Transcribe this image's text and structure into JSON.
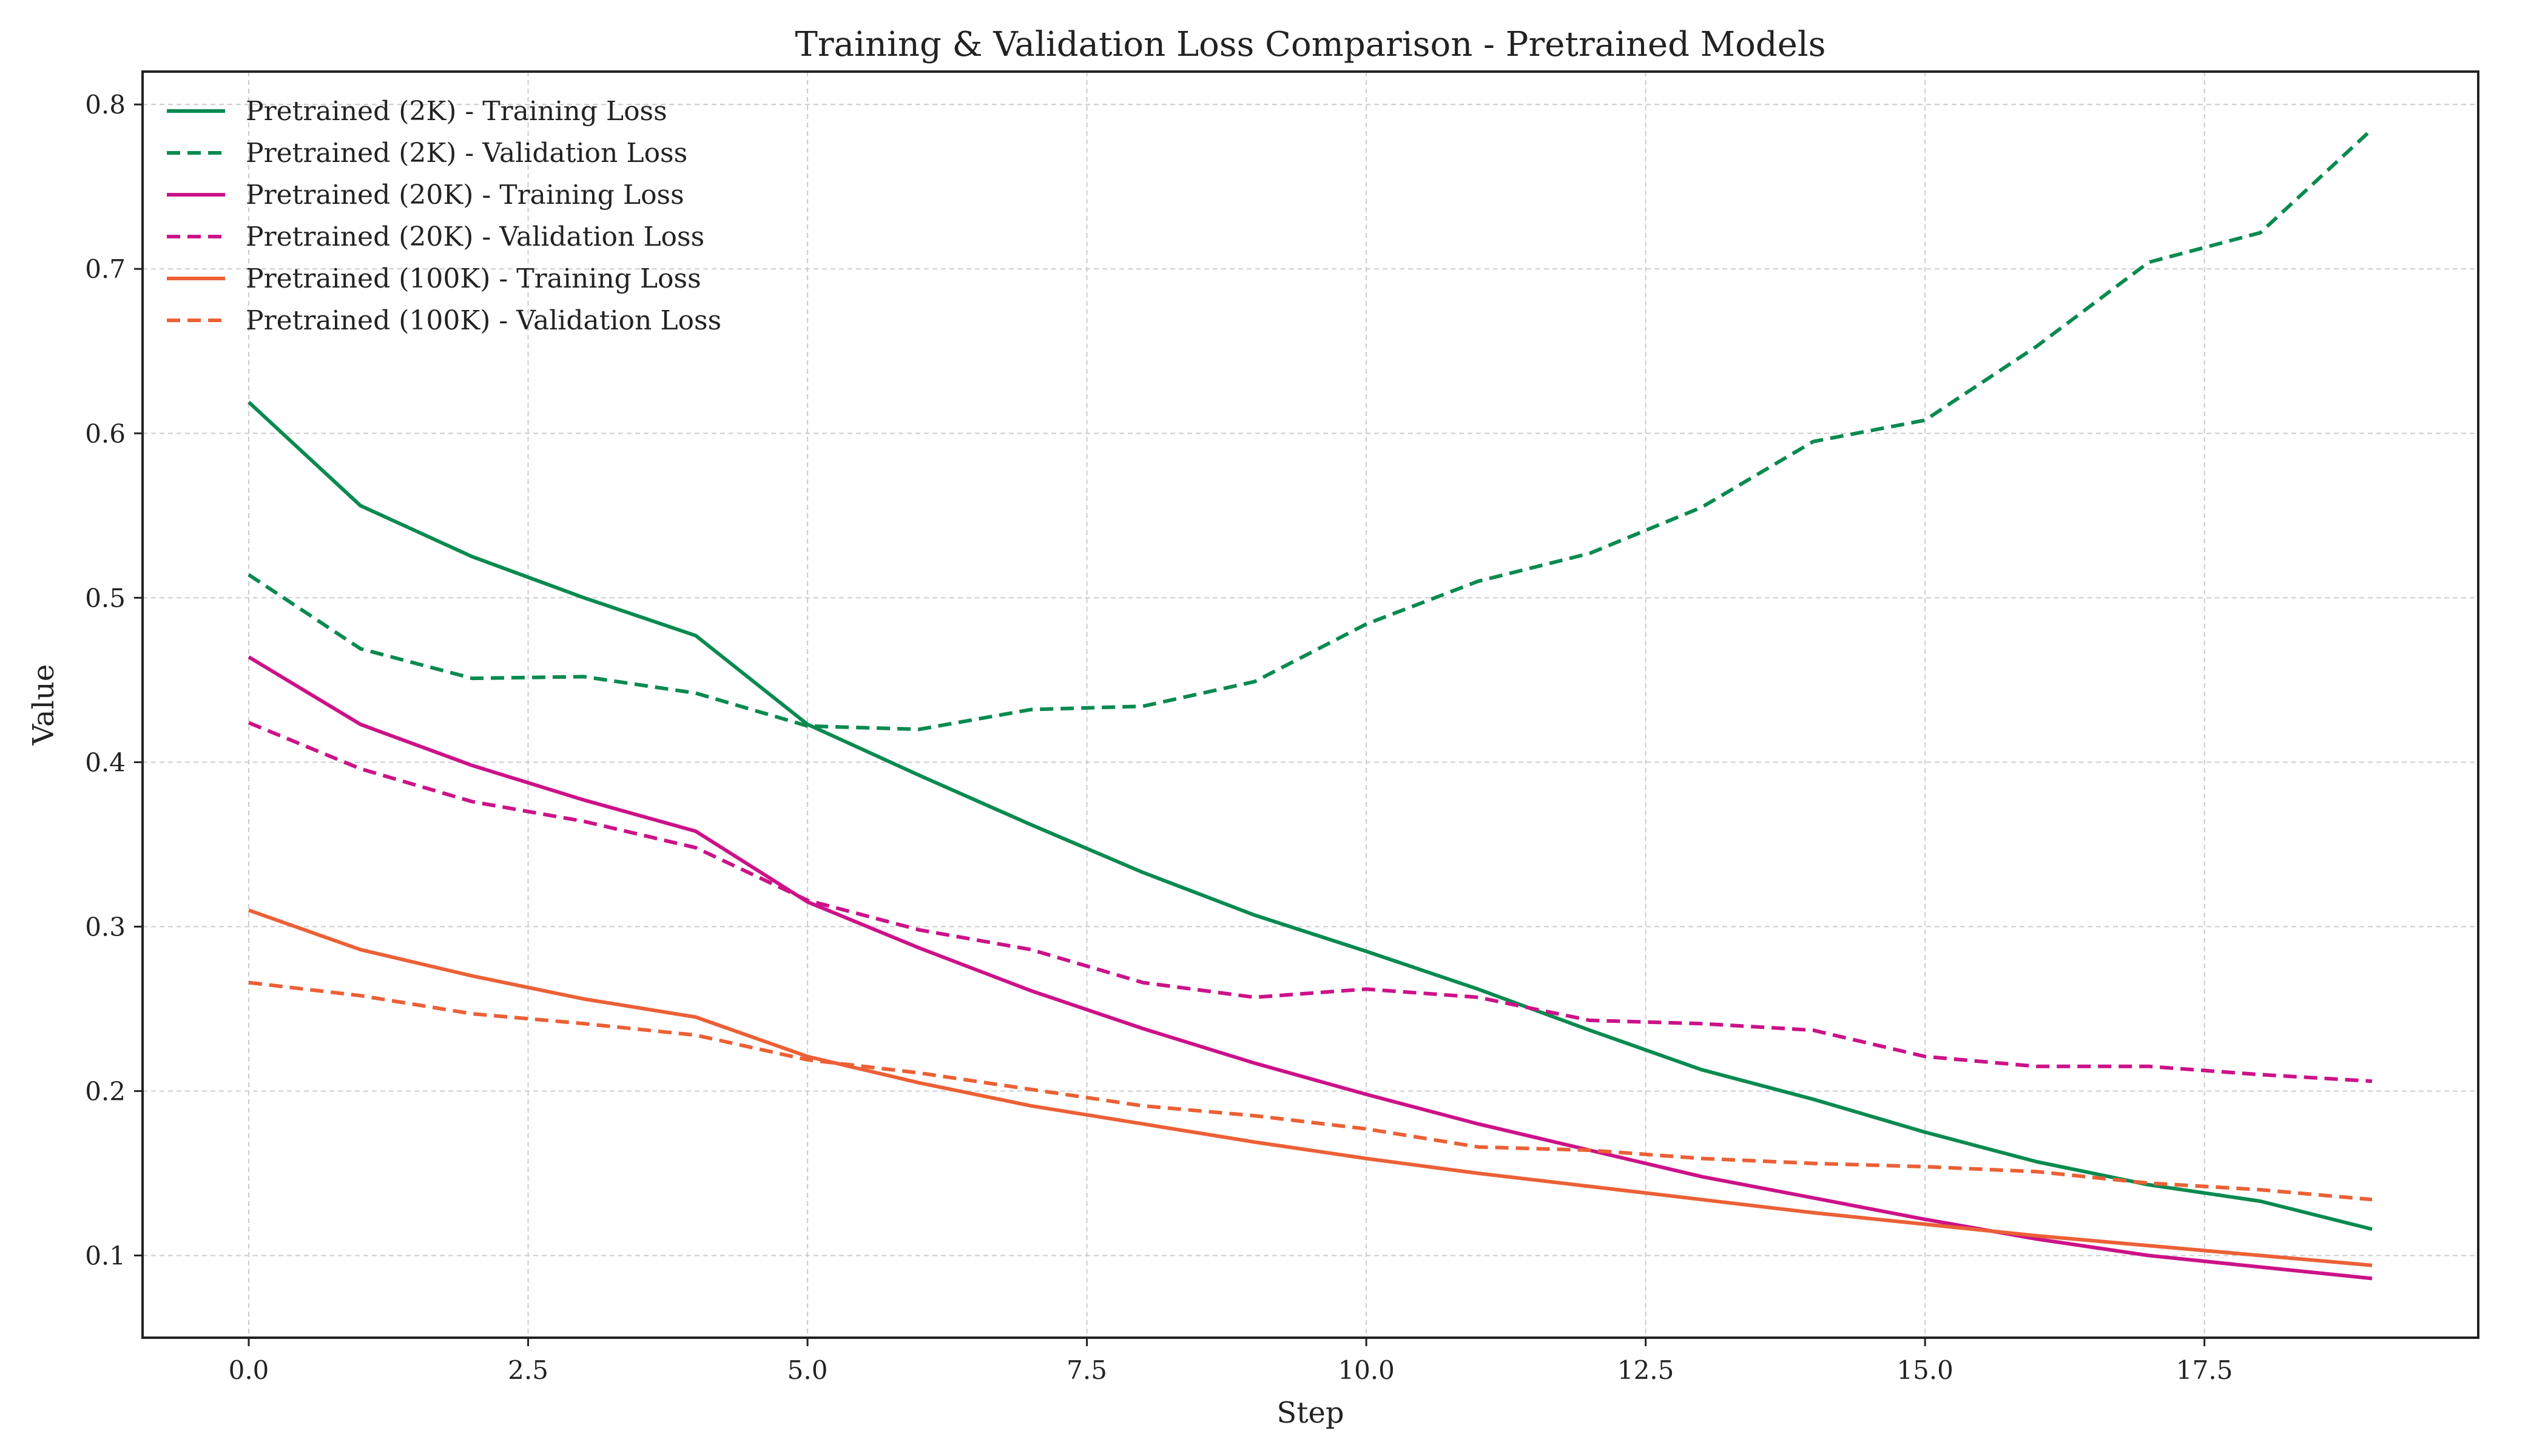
{
  "chart_data": {
    "type": "line",
    "title": "Training & Validation Loss Comparison - Pretrained Models",
    "xlabel": "Step",
    "ylabel": "Value",
    "xlim": [
      -0.95,
      19.95
    ],
    "ylim": [
      0.05,
      0.82
    ],
    "xticks": [
      "0.0",
      "2.5",
      "5.0",
      "7.5",
      "10.0",
      "12.5",
      "15.0",
      "17.5"
    ],
    "xtick_values": [
      0,
      2.5,
      5,
      7.5,
      10,
      12.5,
      15,
      17.5
    ],
    "yticks": [
      "0.1",
      "0.2",
      "0.3",
      "0.4",
      "0.5",
      "0.6",
      "0.7",
      "0.8"
    ],
    "ytick_values": [
      0.1,
      0.2,
      0.3,
      0.4,
      0.5,
      0.6,
      0.7,
      0.8
    ],
    "grid": true,
    "legend_position": "top-left",
    "x": [
      0,
      1,
      2,
      3,
      4,
      5,
      6,
      7,
      8,
      9,
      10,
      11,
      12,
      13,
      14,
      15,
      16,
      17,
      18,
      19
    ],
    "series": [
      {
        "name": "Pretrained (2K) - Training Loss",
        "color": "#0a8a50",
        "dashed": false,
        "values": [
          0.619,
          0.556,
          0.525,
          0.5,
          0.477,
          0.423,
          0.392,
          0.362,
          0.333,
          0.307,
          0.285,
          0.262,
          0.237,
          0.213,
          0.195,
          0.175,
          0.157,
          0.143,
          0.133,
          0.116
        ]
      },
      {
        "name": "Pretrained (2K) - Validation Loss",
        "color": "#0a8a50",
        "dashed": true,
        "values": [
          0.514,
          0.469,
          0.451,
          0.452,
          0.442,
          0.422,
          0.42,
          0.432,
          0.434,
          0.449,
          0.484,
          0.51,
          0.527,
          0.555,
          0.595,
          0.608,
          0.653,
          0.704,
          0.722,
          0.785
        ]
      },
      {
        "name": "Pretrained (20K) - Training Loss",
        "color": "#cc1288",
        "dashed": false,
        "values": [
          0.464,
          0.423,
          0.398,
          0.377,
          0.358,
          0.315,
          0.287,
          0.261,
          0.238,
          0.217,
          0.198,
          0.18,
          0.164,
          0.148,
          0.135,
          0.122,
          0.11,
          0.1,
          0.093,
          0.086
        ]
      },
      {
        "name": "Pretrained (20K) - Validation Loss",
        "color": "#cc1288",
        "dashed": true,
        "values": [
          0.424,
          0.396,
          0.376,
          0.364,
          0.348,
          0.316,
          0.298,
          0.286,
          0.266,
          0.257,
          0.262,
          0.257,
          0.243,
          0.241,
          0.237,
          0.221,
          0.215,
          0.215,
          0.21,
          0.206
        ]
      },
      {
        "name": "Pretrained (100K) - Training Loss",
        "color": "#ec6036",
        "dashed": false,
        "values": [
          0.31,
          0.286,
          0.27,
          0.256,
          0.245,
          0.221,
          0.205,
          0.191,
          0.18,
          0.169,
          0.159,
          0.15,
          0.142,
          0.134,
          0.126,
          0.119,
          0.112,
          0.106,
          0.1,
          0.094
        ]
      },
      {
        "name": "Pretrained (100K) - Validation Loss",
        "color": "#ec6036",
        "dashed": true,
        "values": [
          0.266,
          0.258,
          0.247,
          0.241,
          0.234,
          0.219,
          0.211,
          0.201,
          0.191,
          0.185,
          0.177,
          0.166,
          0.164,
          0.159,
          0.156,
          0.154,
          0.151,
          0.144,
          0.14,
          0.134
        ]
      }
    ]
  }
}
